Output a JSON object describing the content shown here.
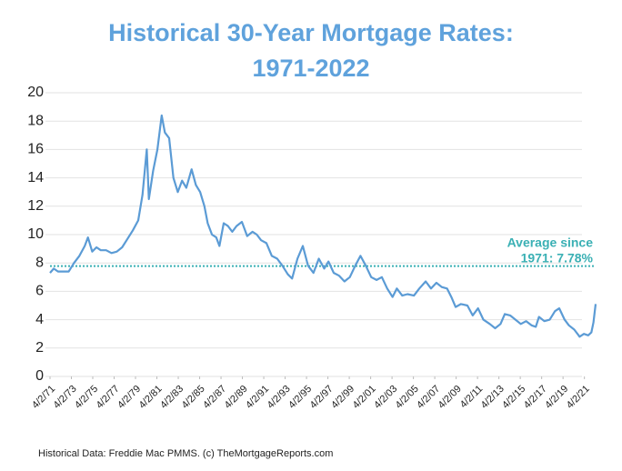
{
  "chart_data": {
    "type": "line",
    "title": [
      "Historical 30-Year Mortgage Rates:",
      "1971-2022"
    ],
    "source": "Historical Data: Freddie Mac PMMS. (c) TheMortgageReports.com",
    "color": "#5b9bd5",
    "x": [
      1971.25,
      1971.6,
      1972.0,
      1972.5,
      1973.0,
      1973.5,
      1974.0,
      1974.5,
      1974.8,
      1975.2,
      1975.6,
      1976.0,
      1976.5,
      1977.0,
      1977.5,
      1978.0,
      1978.5,
      1979.0,
      1979.5,
      1979.9,
      1980.3,
      1980.5,
      1980.9,
      1981.3,
      1981.7,
      1982.0,
      1982.4,
      1982.8,
      1983.2,
      1983.6,
      1984.0,
      1984.5,
      1984.9,
      1985.3,
      1985.7,
      1986.0,
      1986.4,
      1986.8,
      1987.1,
      1987.5,
      1987.9,
      1988.3,
      1988.7,
      1989.2,
      1989.7,
      1990.2,
      1990.6,
      1991.0,
      1991.5,
      1992.0,
      1992.5,
      1993.0,
      1993.5,
      1993.9,
      1994.4,
      1994.9,
      1995.4,
      1995.9,
      1996.4,
      1996.9,
      1997.3,
      1997.8,
      1998.3,
      1998.8,
      1999.3,
      1999.8,
      2000.3,
      2000.8,
      2001.3,
      2001.8,
      2002.3,
      2002.8,
      2003.3,
      2003.7,
      2004.2,
      2004.7,
      2005.3,
      2005.8,
      2006.4,
      2006.9,
      2007.4,
      2007.9,
      2008.4,
      2008.8,
      2009.2,
      2009.7,
      2010.3,
      2010.8,
      2011.3,
      2011.8,
      2012.4,
      2012.9,
      2013.4,
      2013.8,
      2014.3,
      2014.8,
      2015.3,
      2015.8,
      2016.3,
      2016.7,
      2017.0,
      2017.5,
      2018.0,
      2018.5,
      2018.9,
      2019.4,
      2019.8,
      2020.3,
      2020.8,
      2021.2,
      2021.6,
      2021.9,
      2022.1,
      2022.3
    ],
    "values": [
      7.3,
      7.6,
      7.4,
      7.4,
      7.4,
      8.0,
      8.5,
      9.2,
      9.8,
      8.8,
      9.1,
      8.9,
      8.9,
      8.7,
      8.8,
      9.1,
      9.7,
      10.3,
      11.0,
      12.8,
      16.0,
      12.5,
      14.5,
      16.0,
      18.4,
      17.2,
      16.8,
      14.0,
      13.0,
      13.8,
      13.3,
      14.6,
      13.5,
      13.0,
      12.0,
      10.8,
      10.0,
      9.8,
      9.2,
      10.8,
      10.6,
      10.2,
      10.6,
      10.9,
      9.9,
      10.2,
      10.0,
      9.6,
      9.4,
      8.5,
      8.3,
      7.8,
      7.2,
      6.9,
      8.3,
      9.2,
      7.8,
      7.3,
      8.3,
      7.6,
      8.1,
      7.3,
      7.1,
      6.7,
      7.0,
      7.8,
      8.5,
      7.8,
      7.0,
      6.8,
      7.0,
      6.2,
      5.6,
      6.2,
      5.7,
      5.8,
      5.7,
      6.2,
      6.7,
      6.2,
      6.6,
      6.3,
      6.2,
      5.6,
      4.9,
      5.1,
      5.0,
      4.3,
      4.8,
      4.0,
      3.7,
      3.4,
      3.7,
      4.4,
      4.3,
      4.0,
      3.7,
      3.9,
      3.6,
      3.5,
      4.2,
      3.9,
      4.0,
      4.6,
      4.8,
      4.0,
      3.6,
      3.3,
      2.8,
      3.0,
      2.9,
      3.1,
      3.8,
      5.1
    ],
    "average": {
      "value": 7.78,
      "color": "#3ab0b4",
      "label": [
        "Average since",
        "1971: 7.78%"
      ]
    },
    "xlim": [
      1971.25,
      2022.3
    ],
    "xticks": [
      {
        "value": 1971.25,
        "label": "4/2/71"
      },
      {
        "value": 1973.25,
        "label": "4/2/73"
      },
      {
        "value": 1975.25,
        "label": "4/2/75"
      },
      {
        "value": 1977.25,
        "label": "4/2/77"
      },
      {
        "value": 1979.25,
        "label": "4/2/79"
      },
      {
        "value": 1981.25,
        "label": "4/2/81"
      },
      {
        "value": 1983.25,
        "label": "4/2/83"
      },
      {
        "value": 1985.25,
        "label": "4/2/85"
      },
      {
        "value": 1987.25,
        "label": "4/2/87"
      },
      {
        "value": 1989.25,
        "label": "4/2/89"
      },
      {
        "value": 1991.25,
        "label": "4/2/91"
      },
      {
        "value": 1993.25,
        "label": "4/2/93"
      },
      {
        "value": 1995.25,
        "label": "4/2/95"
      },
      {
        "value": 1997.25,
        "label": "4/2/97"
      },
      {
        "value": 1999.25,
        "label": "4/2/99"
      },
      {
        "value": 2001.25,
        "label": "4/2/01"
      },
      {
        "value": 2003.25,
        "label": "4/2/03"
      },
      {
        "value": 2005.25,
        "label": "4/2/05"
      },
      {
        "value": 2007.25,
        "label": "4/2/07"
      },
      {
        "value": 2009.25,
        "label": "4/2/09"
      },
      {
        "value": 2011.25,
        "label": "4/2/11"
      },
      {
        "value": 2013.25,
        "label": "4/2/13"
      },
      {
        "value": 2015.25,
        "label": "4/2/15"
      },
      {
        "value": 2017.25,
        "label": "4/2/17"
      },
      {
        "value": 2019.25,
        "label": "4/2/19"
      },
      {
        "value": 2021.25,
        "label": "4/2/21"
      }
    ],
    "ylim": [
      0,
      20
    ],
    "yticks": [
      0,
      2,
      4,
      6,
      8,
      10,
      12,
      14,
      16,
      18,
      20
    ],
    "grid": true
  }
}
